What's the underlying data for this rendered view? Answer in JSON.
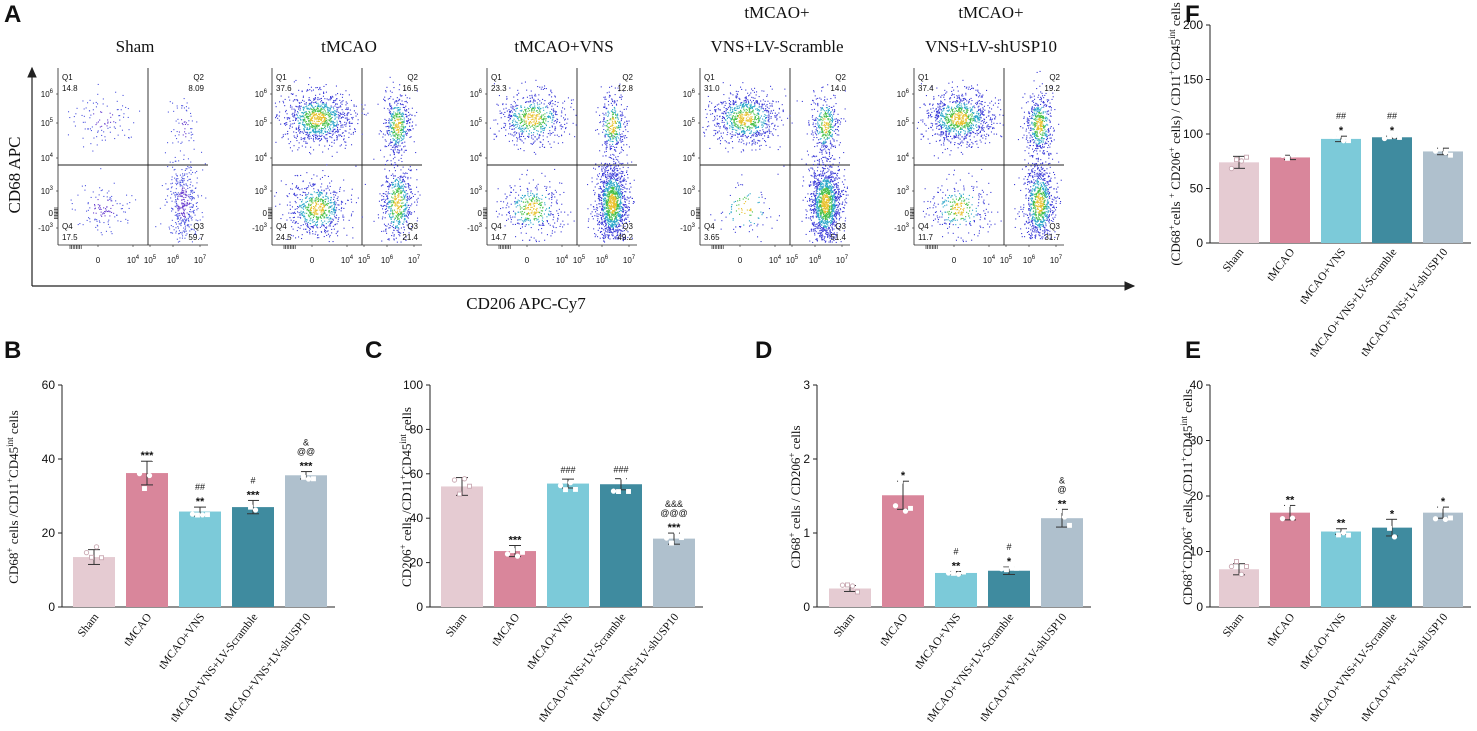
{
  "panel_a": {
    "letter": "A",
    "y_axis_label": "CD68 APC",
    "x_axis_label": "CD206 APC-Cy7",
    "groups": [
      {
        "title_lines": [
          "Sham"
        ],
        "q1": "14.8",
        "q2": "8.09",
        "q3": "59.7",
        "q4": "17.5"
      },
      {
        "title_lines": [
          "tMCAO"
        ],
        "q1": "37.6",
        "q2": "16.5",
        "q3": "21.4",
        "q4": "24.5"
      },
      {
        "title_lines": [
          "tMCAO+VNS"
        ],
        "q1": "23.3",
        "q2": "12.8",
        "q3": "49.2",
        "q4": "14.7"
      },
      {
        "title_lines": [
          "tMCAO+",
          "VNS+LV-Scramble"
        ],
        "q1": "31.0",
        "q2": "14.0",
        "q3": "51.4",
        "q4": "3.65"
      },
      {
        "title_lines": [
          "tMCAO+",
          "VNS+LV-shUSP10"
        ],
        "q1": "37.4",
        "q2": "19.2",
        "q3": "31.7",
        "q4": "11.7"
      }
    ],
    "quadrant_names": [
      "Q1",
      "Q2",
      "Q3",
      "Q4"
    ],
    "y_ticks": [
      "10^6",
      "10^5",
      "10^4",
      "10^3",
      "0",
      "-10^3"
    ],
    "x_ticks": [
      "0",
      "10^4",
      "10^5",
      "10^6",
      "10^7"
    ]
  },
  "chart_data": [
    {
      "panel": "B",
      "type": "bar",
      "categories": [
        "Sham",
        "tMCAO",
        "tMCAO+VNS",
        "tMCAO+VNS+LV-Scramble",
        "tMCAO+VNS+LV-shUSP10"
      ],
      "values": [
        13.5,
        36.2,
        25.8,
        27.0,
        35.6
      ],
      "errors": [
        2.0,
        3.2,
        1.2,
        1.8,
        1.0
      ],
      "ylabel": "CD68+ cells /CD11+CD45int cells",
      "ylim": [
        0,
        60
      ],
      "yticks": [
        0,
        20,
        40,
        60
      ],
      "significance": [
        [],
        [
          "***"
        ],
        [
          "##",
          "**"
        ],
        [
          "#",
          "***"
        ],
        [
          "&",
          "@@",
          "***"
        ]
      ]
    },
    {
      "panel": "C",
      "type": "bar",
      "categories": [
        "Sham",
        "tMCAO",
        "tMCAO+VNS",
        "tMCAO+VNS+LV-Scramble",
        "tMCAO+VNS+LV-shUSP10"
      ],
      "values": [
        54.3,
        25.2,
        55.6,
        55.3,
        30.8
      ],
      "errors": [
        4.0,
        2.5,
        2.0,
        2.5,
        2.5
      ],
      "ylabel": "CD206+ cells /CD11+CD45int cells",
      "ylim": [
        0,
        100
      ],
      "yticks": [
        0,
        20,
        40,
        60,
        80,
        100
      ],
      "significance": [
        [],
        [
          "***"
        ],
        [
          "###"
        ],
        [
          "###"
        ],
        [
          "&&&",
          "@@@",
          "***"
        ]
      ]
    },
    {
      "panel": "D",
      "type": "bar",
      "categories": [
        "Sham",
        "tMCAO",
        "tMCAO+VNS",
        "tMCAO+VNS+LV-Scramble",
        "tMCAO+VNS+LV-shUSP10"
      ],
      "values": [
        0.25,
        1.51,
        0.46,
        0.49,
        1.2
      ],
      "errors": [
        0.04,
        0.19,
        0.02,
        0.05,
        0.12
      ],
      "ylabel": "CD68+ cells / CD206+ cells",
      "ylim": [
        0,
        3
      ],
      "yticks": [
        0,
        1,
        2,
        3
      ],
      "significance": [
        [],
        [
          "*"
        ],
        [
          "#",
          "**"
        ],
        [
          "#",
          "*"
        ],
        [
          "&",
          "@",
          "**"
        ]
      ]
    },
    {
      "panel": "E",
      "type": "bar",
      "categories": [
        "Sham",
        "tMCAO",
        "tMCAO+VNS",
        "tMCAO+VNS+LV-Scramble",
        "tMCAO+VNS+LV-shUSP10"
      ],
      "values": [
        6.8,
        17.0,
        13.6,
        14.3,
        17.0
      ],
      "errors": [
        1.0,
        1.3,
        0.5,
        1.5,
        1.0
      ],
      "ylabel": "CD68+CD206+ cells /CD11+CD45int cells",
      "ylim": [
        0,
        40
      ],
      "yticks": [
        0,
        10,
        20,
        30,
        40
      ],
      "significance": [
        [],
        [
          "**"
        ],
        [
          "**"
        ],
        [
          "*"
        ],
        [
          "*"
        ]
      ]
    },
    {
      "panel": "F",
      "type": "bar",
      "categories": [
        "Sham",
        "tMCAO",
        "tMCAO+VNS",
        "tMCAO+VNS+LV-Scramble",
        "tMCAO+VNS+LV-shUSP10"
      ],
      "values": [
        74.0,
        78.5,
        95.5,
        97.0,
        84.0
      ],
      "errors": [
        5.5,
        2.0,
        2.5,
        1.0,
        3.0
      ],
      "ylabel": "(CD68+cells + CD206+ cells) / CD11+CD45int cells",
      "ylim": [
        0,
        200
      ],
      "yticks": [
        0,
        50,
        100,
        150,
        200
      ],
      "significance": [
        [],
        [],
        [
          "##",
          "*"
        ],
        [
          "##",
          "*"
        ],
        []
      ]
    }
  ],
  "colors": {
    "sham": "#e5cbd2",
    "tmcao": "#d9869b",
    "vns": "#7ccad9",
    "scramble": "#3f8b9f",
    "shusp10": "#afc0cd",
    "axis": "#111111"
  }
}
